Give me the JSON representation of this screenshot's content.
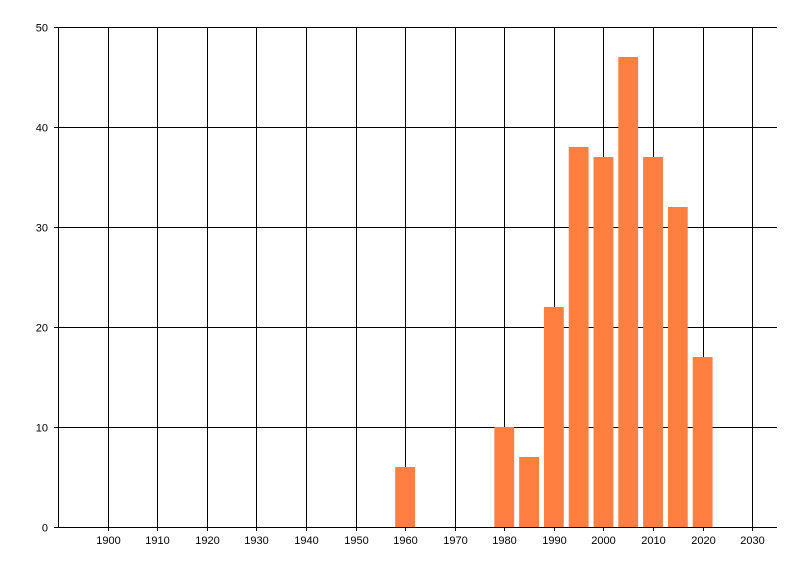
{
  "chart_data": {
    "type": "bar",
    "title": "",
    "xlabel": "",
    "ylabel": "",
    "x": [
      1960,
      1980,
      1985,
      1990,
      1995,
      2000,
      2005,
      2010,
      2015,
      2020
    ],
    "values": [
      6,
      10,
      7,
      22,
      38,
      37,
      47,
      37,
      32,
      17
    ],
    "bar_width_years": 4,
    "xlim": [
      1890,
      2035
    ],
    "ylim": [
      0,
      50
    ],
    "x_ticks": [
      1900,
      1910,
      1920,
      1930,
      1940,
      1950,
      1960,
      1970,
      1980,
      1990,
      2000,
      2010,
      2020,
      2030
    ],
    "y_ticks": [
      0,
      10,
      20,
      30,
      40,
      50
    ],
    "grid": true,
    "legend": "none",
    "colors": {
      "bar": "#FF7F40",
      "grid": "#000000"
    }
  }
}
